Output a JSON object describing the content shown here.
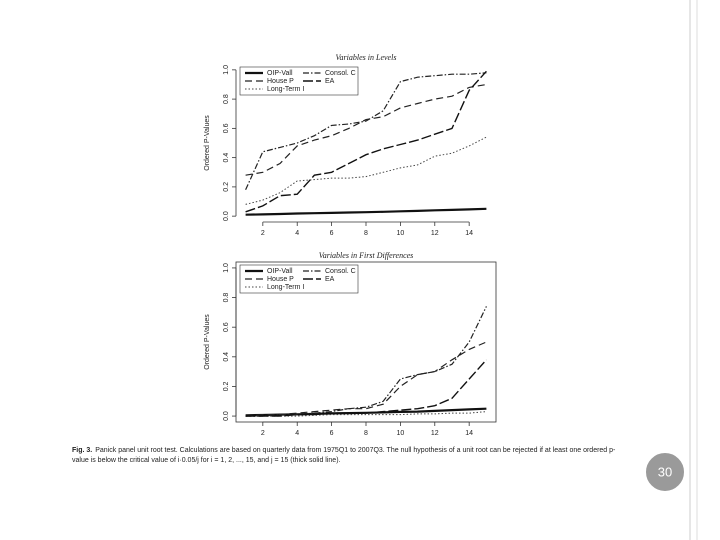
{
  "chart_data": [
    {
      "type": "line",
      "title": "Variables in Levels",
      "ylabel": "Ordered P-Values",
      "x": [
        1,
        2,
        3,
        4,
        5,
        6,
        7,
        8,
        9,
        10,
        11,
        12,
        13,
        14,
        15
      ],
      "xlim": [
        0.44,
        15.56
      ],
      "xticks": [
        2,
        4,
        6,
        8,
        10,
        12,
        14
      ],
      "ylim": [
        -0.04,
        1.04
      ],
      "yticks": [
        {
          "value": 0,
          "label": "0.0"
        },
        {
          "value": 0.2,
          "label": "0.2"
        },
        {
          "value": 0.4,
          "label": "0.4"
        },
        {
          "value": 0.6,
          "label": "0.6"
        },
        {
          "value": 0.8,
          "label": "0.8"
        },
        {
          "value": 1,
          "label": "1.0"
        }
      ],
      "frame": false,
      "series": [
        {
          "name": "OIP-Vall",
          "color": "#111111",
          "width": 2.2,
          "dash": "none",
          "values": [
            0.01,
            0.012,
            0.015,
            0.018,
            0.02,
            0.022,
            0.025,
            0.027,
            0.03,
            0.033,
            0.036,
            0.04,
            0.043,
            0.046,
            0.05
          ]
        },
        {
          "name": "House P",
          "color": "#222222",
          "width": 1.2,
          "dash": "7 4",
          "values": [
            0.28,
            0.3,
            0.36,
            0.48,
            0.52,
            0.55,
            0.6,
            0.66,
            0.68,
            0.74,
            0.77,
            0.8,
            0.82,
            0.88,
            0.9
          ]
        },
        {
          "name": "Long-Term I",
          "color": "#444444",
          "width": 1,
          "dash": "1.5 2",
          "values": [
            0.08,
            0.11,
            0.16,
            0.24,
            0.25,
            0.26,
            0.26,
            0.27,
            0.3,
            0.33,
            0.35,
            0.41,
            0.43,
            0.48,
            0.54
          ]
        },
        {
          "name": "Consol. C",
          "color": "#222222",
          "width": 1.2,
          "dash": "6 2 1.5 2",
          "values": [
            0.18,
            0.44,
            0.47,
            0.5,
            0.55,
            0.62,
            0.63,
            0.65,
            0.72,
            0.92,
            0.95,
            0.96,
            0.97,
            0.97,
            0.98
          ]
        },
        {
          "name": "EA",
          "color": "#111111",
          "width": 1.4,
          "dash": "10 3",
          "values": [
            0.03,
            0.07,
            0.14,
            0.15,
            0.28,
            0.3,
            0.36,
            0.42,
            0.46,
            0.49,
            0.52,
            0.56,
            0.6,
            0.86,
            0.99
          ]
        }
      ]
    },
    {
      "type": "line",
      "title": "Variables in First Differences",
      "ylabel": "Ordered P-Values",
      "x": [
        1,
        2,
        3,
        4,
        5,
        6,
        7,
        8,
        9,
        10,
        11,
        12,
        13,
        14,
        15
      ],
      "xlim": [
        0.44,
        15.56
      ],
      "xticks": [
        2,
        4,
        6,
        8,
        10,
        12,
        14
      ],
      "ylim": [
        -0.04,
        1.04
      ],
      "yticks": [
        {
          "value": 0,
          "label": "0.0"
        },
        {
          "value": 0.2,
          "label": "0.2"
        },
        {
          "value": 0.4,
          "label": "0.4"
        },
        {
          "value": 0.6,
          "label": "0.6"
        },
        {
          "value": 0.8,
          "label": "0.8"
        },
        {
          "value": 1,
          "label": "1.0"
        }
      ],
      "frame": true,
      "series": [
        {
          "name": "OIP-Vall",
          "color": "#111111",
          "width": 2.2,
          "dash": "none",
          "values": [
            0.005,
            0.007,
            0.01,
            0.012,
            0.015,
            0.018,
            0.02,
            0.022,
            0.025,
            0.028,
            0.03,
            0.035,
            0.04,
            0.045,
            0.05
          ]
        },
        {
          "name": "House P",
          "color": "#222222",
          "width": 1.2,
          "dash": "7 4",
          "values": [
            0,
            0.01,
            0.01,
            0.02,
            0.03,
            0.04,
            0.05,
            0.05,
            0.08,
            0.2,
            0.28,
            0.3,
            0.38,
            0.45,
            0.5
          ]
        },
        {
          "name": "Long-Term I",
          "color": "#444444",
          "width": 1,
          "dash": "1.5 2",
          "values": [
            0,
            0,
            0,
            0,
            0.005,
            0.01,
            0.01,
            0.01,
            0.01,
            0.01,
            0.015,
            0.015,
            0.02,
            0.02,
            0.03
          ]
        },
        {
          "name": "Consol. C",
          "color": "#222222",
          "width": 1.2,
          "dash": "6 2 1.5 2",
          "values": [
            0,
            0,
            0.01,
            0.01,
            0.02,
            0.03,
            0.05,
            0.06,
            0.1,
            0.25,
            0.28,
            0.3,
            0.35,
            0.5,
            0.74
          ]
        },
        {
          "name": "EA",
          "color": "#111111",
          "width": 1.4,
          "dash": "10 3",
          "values": [
            0,
            0,
            0,
            0.01,
            0.01,
            0.02,
            0.02,
            0.02,
            0.03,
            0.04,
            0.05,
            0.07,
            0.12,
            0.25,
            0.38
          ]
        }
      ]
    }
  ],
  "caption": {
    "label": "Fig. 3.",
    "text": "Panick panel unit root test. Calculations are based on quarterly data from 1975Q1 to 2007Q3. The null hypothesis of a unit root can be rejected if at least one ordered p-value is below the critical value of i·0.05/j for i = 1, 2, ..., 15, and j = 15 (thick solid line)."
  },
  "slide_number": "30"
}
